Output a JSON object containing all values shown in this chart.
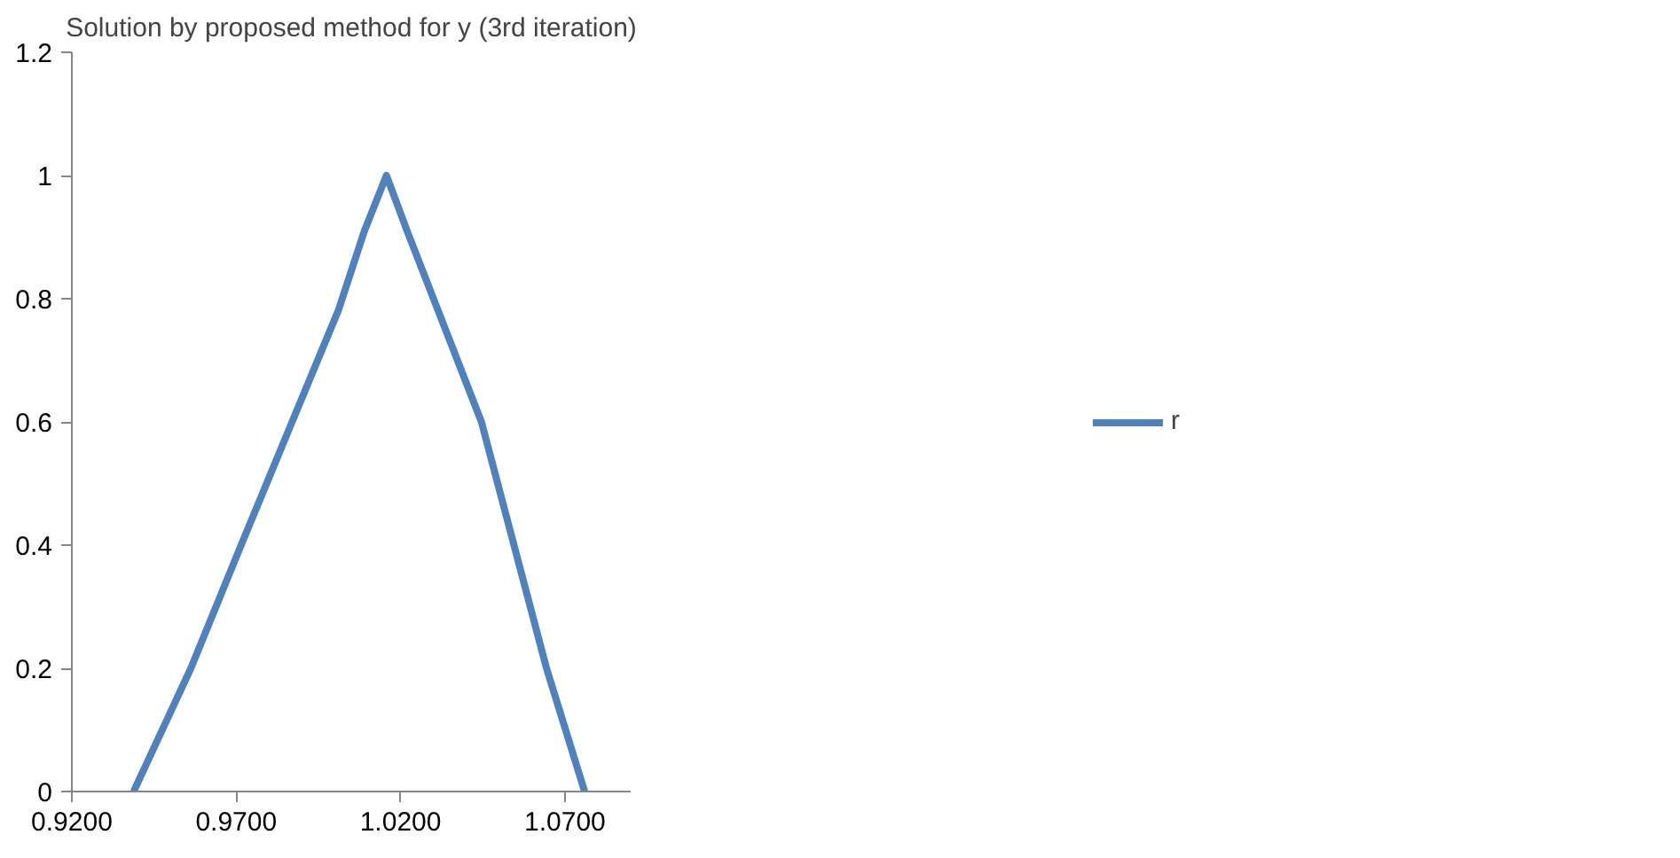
{
  "chart_data": {
    "type": "line",
    "title": "Solution by proposed method for y (3rd iteration)",
    "series": [
      {
        "name": "r",
        "color": "#4f81bd",
        "x": [
          0.9388,
          0.9562,
          0.9715,
          0.987,
          1.001,
          1.009,
          1.0157,
          1.022,
          1.0446,
          1.0644,
          1.076
        ],
        "values": [
          0,
          0.2,
          0.4,
          0.6,
          0.78,
          0.91,
          1,
          0.91,
          0.6,
          0.2,
          0
        ]
      }
    ],
    "xlim": [
      0.92,
      1.09
    ],
    "xticks": [
      {
        "value": 0.92,
        "label": "0.9200"
      },
      {
        "value": 0.97,
        "label": "0.9700"
      },
      {
        "value": 1.02,
        "label": "1.0200"
      },
      {
        "value": 1.07,
        "label": "1.0700"
      }
    ],
    "ylim": [
      0,
      1.2
    ],
    "yticks": [
      0,
      0.2,
      0.4,
      0.6,
      0.8,
      1,
      1.2
    ],
    "grid": false,
    "legend": "right",
    "marker": "none",
    "line_style": "solid"
  }
}
